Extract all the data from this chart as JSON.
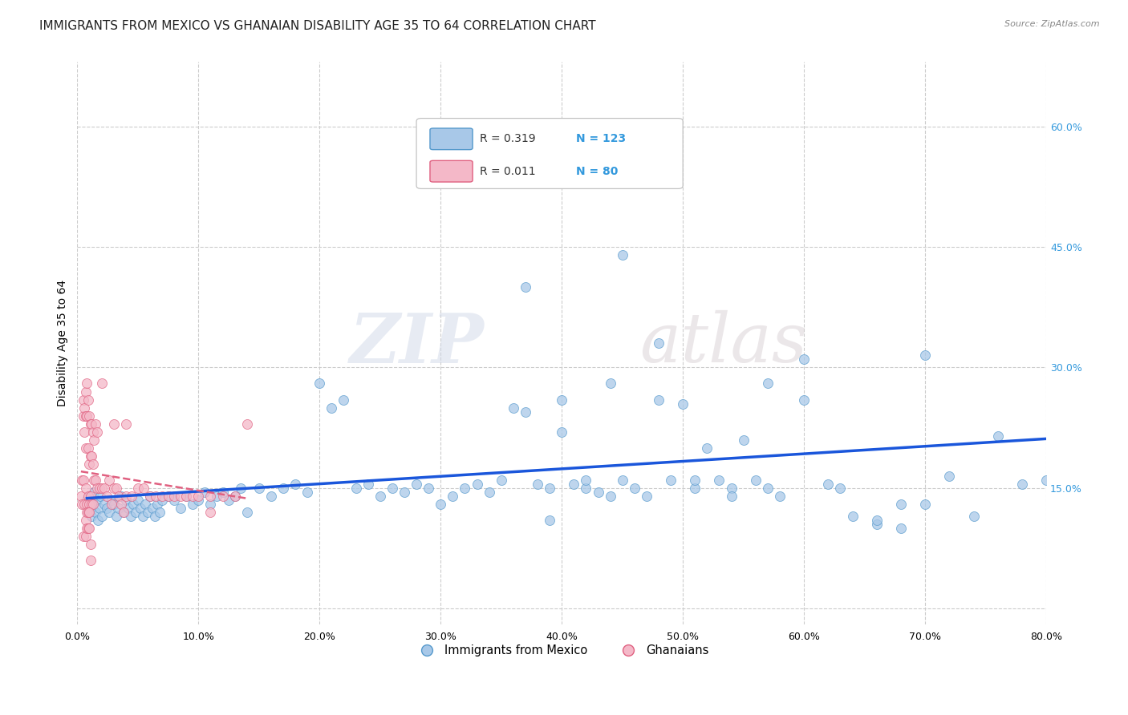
{
  "title": "IMMIGRANTS FROM MEXICO VS GHANAIAN DISABILITY AGE 35 TO 64 CORRELATION CHART",
  "source": "Source: ZipAtlas.com",
  "ylabel": "Disability Age 35 to 64",
  "legend_label_1": "Immigrants from Mexico",
  "legend_label_2": "Ghanaians",
  "R1": 0.319,
  "N1": 123,
  "R2": 0.011,
  "N2": 80,
  "color_blue": "#a8c8e8",
  "color_pink": "#f4b8c8",
  "color_blue_edge": "#5599cc",
  "color_pink_edge": "#e06080",
  "color_blue_text": "#3399dd",
  "trend_blue": "#1a56db",
  "trend_pink": "#e06080",
  "xlim": [
    0.0,
    0.8
  ],
  "ylim": [
    -0.02,
    0.68
  ],
  "yticks": [
    0.0,
    0.15,
    0.3,
    0.45,
    0.6
  ],
  "xticks": [
    0.0,
    0.1,
    0.2,
    0.3,
    0.4,
    0.5,
    0.6,
    0.7,
    0.8
  ],
  "blue_x": [
    0.008,
    0.009,
    0.01,
    0.011,
    0.012,
    0.013,
    0.014,
    0.015,
    0.016,
    0.017,
    0.018,
    0.019,
    0.02,
    0.022,
    0.024,
    0.026,
    0.028,
    0.03,
    0.032,
    0.034,
    0.036,
    0.038,
    0.04,
    0.042,
    0.044,
    0.046,
    0.048,
    0.05,
    0.052,
    0.054,
    0.056,
    0.058,
    0.06,
    0.062,
    0.064,
    0.066,
    0.068,
    0.07,
    0.075,
    0.08,
    0.085,
    0.09,
    0.095,
    0.1,
    0.105,
    0.11,
    0.115,
    0.12,
    0.125,
    0.13,
    0.135,
    0.14,
    0.15,
    0.16,
    0.17,
    0.18,
    0.19,
    0.2,
    0.21,
    0.22,
    0.23,
    0.24,
    0.25,
    0.26,
    0.27,
    0.28,
    0.29,
    0.3,
    0.31,
    0.32,
    0.33,
    0.34,
    0.35,
    0.36,
    0.37,
    0.38,
    0.39,
    0.4,
    0.41,
    0.42,
    0.43,
    0.44,
    0.45,
    0.46,
    0.47,
    0.48,
    0.49,
    0.5,
    0.51,
    0.52,
    0.53,
    0.54,
    0.55,
    0.56,
    0.57,
    0.58,
    0.6,
    0.62,
    0.64,
    0.66,
    0.68,
    0.7,
    0.72,
    0.74,
    0.76,
    0.78,
    0.8,
    0.45,
    0.48,
    0.51,
    0.54,
    0.57,
    0.6,
    0.63,
    0.66,
    0.68,
    0.7,
    0.4,
    0.42,
    0.44,
    0.35,
    0.37,
    0.39
  ],
  "blue_y": [
    0.135,
    0.12,
    0.14,
    0.125,
    0.115,
    0.13,
    0.145,
    0.12,
    0.135,
    0.11,
    0.125,
    0.14,
    0.115,
    0.13,
    0.125,
    0.12,
    0.135,
    0.13,
    0.115,
    0.125,
    0.14,
    0.12,
    0.135,
    0.125,
    0.115,
    0.13,
    0.12,
    0.135,
    0.125,
    0.115,
    0.13,
    0.12,
    0.14,
    0.125,
    0.115,
    0.13,
    0.12,
    0.135,
    0.14,
    0.135,
    0.125,
    0.14,
    0.13,
    0.135,
    0.145,
    0.13,
    0.14,
    0.145,
    0.135,
    0.14,
    0.15,
    0.12,
    0.15,
    0.14,
    0.15,
    0.155,
    0.145,
    0.28,
    0.25,
    0.26,
    0.15,
    0.155,
    0.14,
    0.15,
    0.145,
    0.155,
    0.15,
    0.13,
    0.14,
    0.15,
    0.155,
    0.145,
    0.16,
    0.25,
    0.245,
    0.155,
    0.15,
    0.26,
    0.155,
    0.15,
    0.145,
    0.28,
    0.16,
    0.15,
    0.14,
    0.26,
    0.16,
    0.255,
    0.15,
    0.2,
    0.16,
    0.15,
    0.21,
    0.16,
    0.15,
    0.14,
    0.31,
    0.155,
    0.115,
    0.105,
    0.13,
    0.315,
    0.165,
    0.115,
    0.215,
    0.155,
    0.16,
    0.44,
    0.33,
    0.16,
    0.14,
    0.28,
    0.26,
    0.15,
    0.11,
    0.1,
    0.13,
    0.22,
    0.16,
    0.14,
    0.56,
    0.4,
    0.11
  ],
  "pink_x": [
    0.003,
    0.004,
    0.004,
    0.005,
    0.005,
    0.005,
    0.005,
    0.006,
    0.006,
    0.006,
    0.007,
    0.007,
    0.007,
    0.007,
    0.008,
    0.008,
    0.008,
    0.009,
    0.009,
    0.009,
    0.01,
    0.01,
    0.01,
    0.011,
    0.011,
    0.011,
    0.012,
    0.012,
    0.012,
    0.013,
    0.013,
    0.013,
    0.014,
    0.014,
    0.015,
    0.015,
    0.016,
    0.016,
    0.018,
    0.02,
    0.02,
    0.022,
    0.024,
    0.026,
    0.028,
    0.03,
    0.03,
    0.032,
    0.034,
    0.036,
    0.038,
    0.04,
    0.04,
    0.045,
    0.05,
    0.055,
    0.06,
    0.065,
    0.07,
    0.075,
    0.08,
    0.085,
    0.09,
    0.095,
    0.1,
    0.11,
    0.11,
    0.12,
    0.13,
    0.14,
    0.007,
    0.007,
    0.008,
    0.008,
    0.009,
    0.009,
    0.01,
    0.01,
    0.011,
    0.011
  ],
  "pink_y": [
    0.14,
    0.16,
    0.13,
    0.26,
    0.24,
    0.16,
    0.09,
    0.25,
    0.22,
    0.13,
    0.27,
    0.24,
    0.2,
    0.15,
    0.28,
    0.24,
    0.13,
    0.26,
    0.2,
    0.14,
    0.24,
    0.18,
    0.13,
    0.23,
    0.19,
    0.14,
    0.23,
    0.19,
    0.13,
    0.22,
    0.18,
    0.13,
    0.21,
    0.16,
    0.23,
    0.16,
    0.22,
    0.15,
    0.15,
    0.28,
    0.15,
    0.15,
    0.14,
    0.16,
    0.13,
    0.23,
    0.15,
    0.15,
    0.14,
    0.13,
    0.12,
    0.23,
    0.14,
    0.14,
    0.15,
    0.15,
    0.14,
    0.14,
    0.14,
    0.14,
    0.14,
    0.14,
    0.14,
    0.14,
    0.14,
    0.14,
    0.12,
    0.14,
    0.14,
    0.23,
    0.11,
    0.09,
    0.12,
    0.1,
    0.12,
    0.1,
    0.12,
    0.1,
    0.08,
    0.06
  ],
  "watermark_zip": "ZIP",
  "watermark_atlas": "atlas",
  "background_color": "#ffffff",
  "grid_color": "#cccccc",
  "title_fontsize": 11,
  "axis_label_fontsize": 10,
  "tick_fontsize": 9
}
